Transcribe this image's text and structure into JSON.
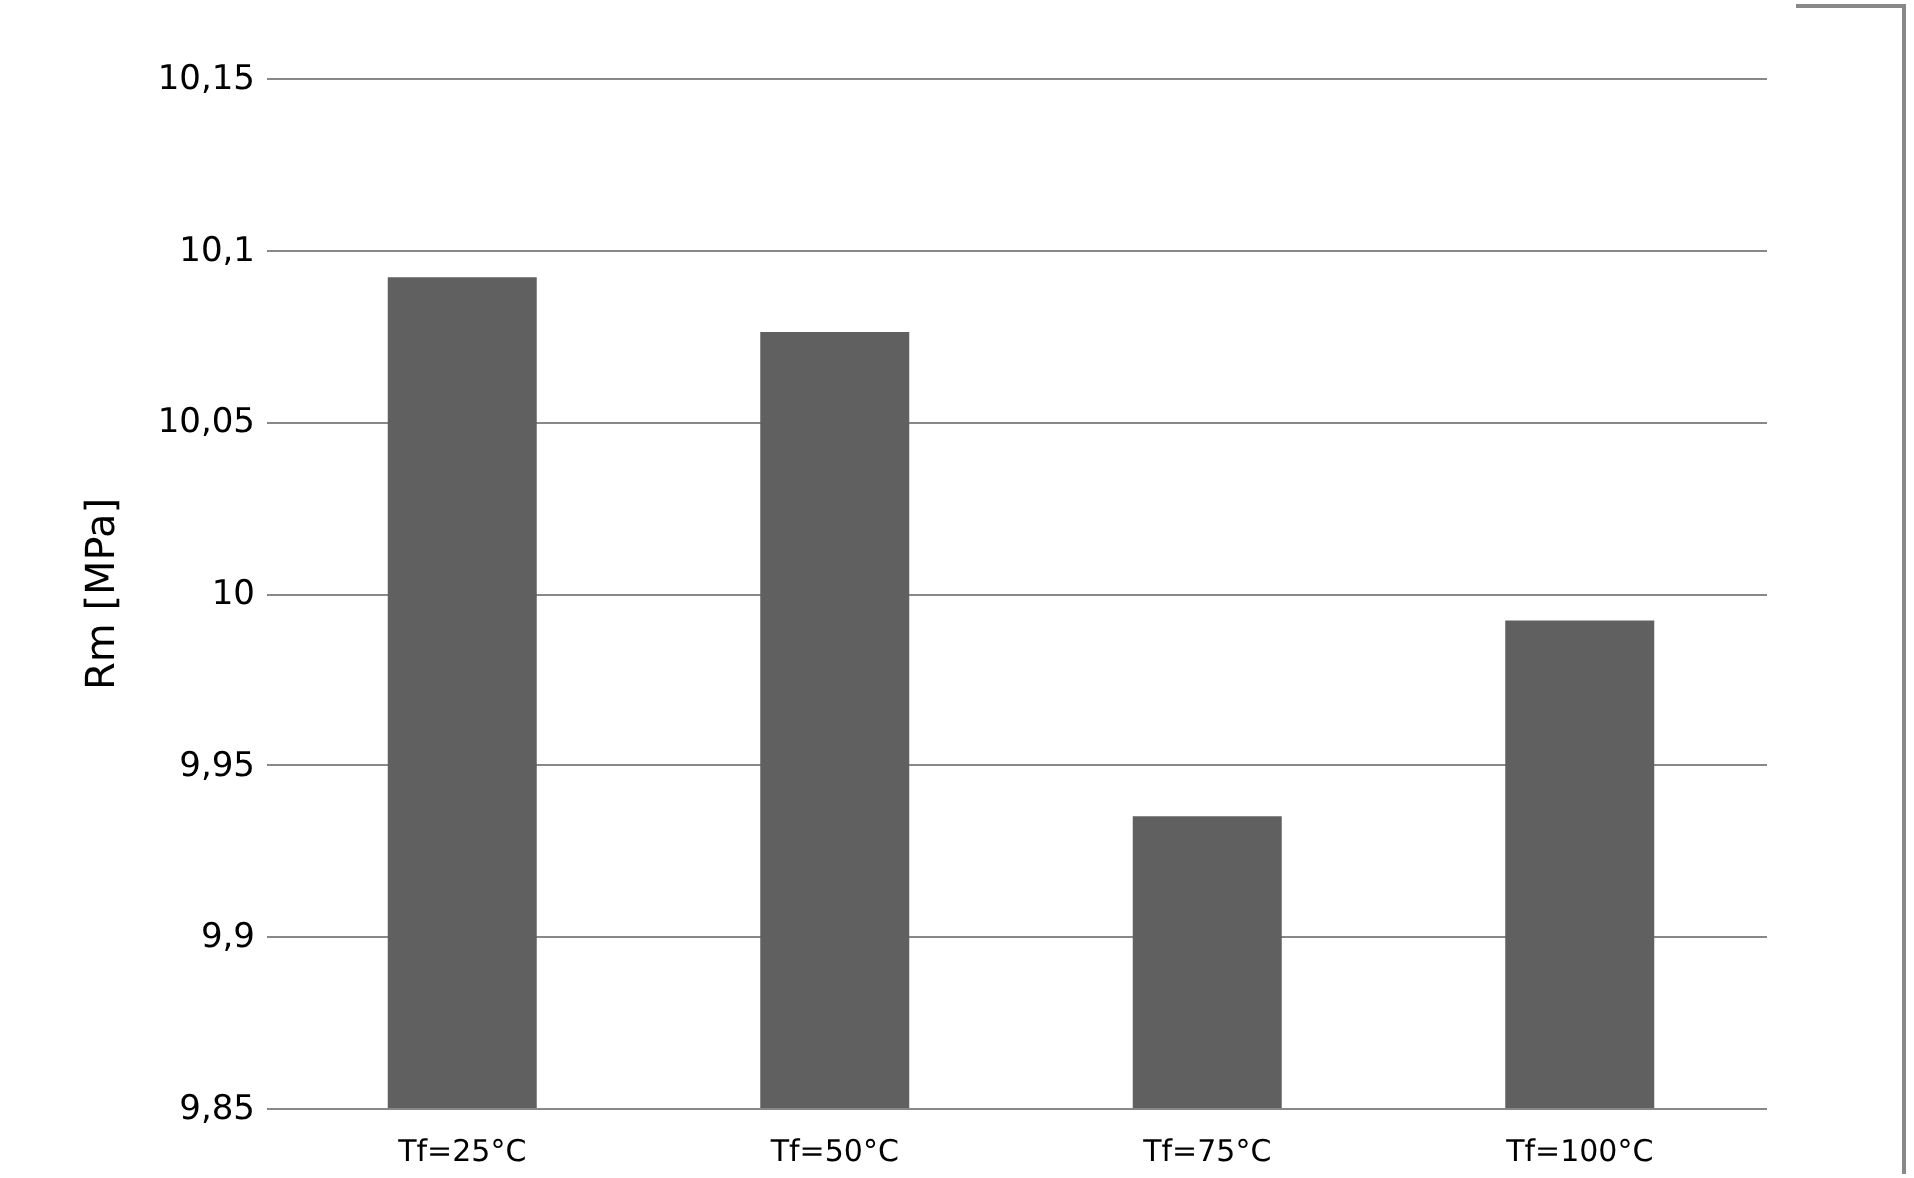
{
  "chart_data": {
    "type": "bar",
    "ylabel": "Rm [MPa]",
    "categories": [
      "Tf=25°C",
      "Tf=50°C",
      "Tf=75°C",
      "Tf=100°C"
    ],
    "values": [
      10.092,
      10.076,
      9.935,
      9.992
    ],
    "color": "#606060",
    "ylim": [
      9.85,
      10.15
    ],
    "yticks": [
      {
        "value": 9.85,
        "label": "9,85"
      },
      {
        "value": 9.9,
        "label": "9,9"
      },
      {
        "value": 9.95,
        "label": "9,95"
      },
      {
        "value": 10,
        "label": "10"
      },
      {
        "value": 10.05,
        "label": "10,05"
      },
      {
        "value": 10.1,
        "label": "10,1"
      },
      {
        "value": 10.15,
        "label": "10,15"
      }
    ],
    "grid": "y"
  }
}
